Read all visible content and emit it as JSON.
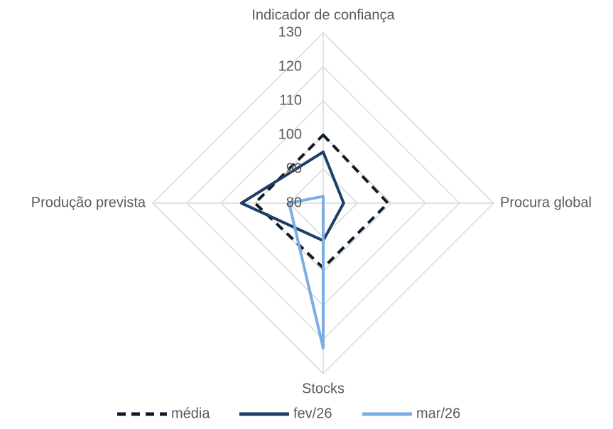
{
  "chart_data": {
    "type": "radar",
    "categories": [
      "Indicador de confiança",
      "Procura global",
      "Stocks",
      "Produção prevista"
    ],
    "ylim": [
      80,
      130
    ],
    "yticks": [
      80,
      90,
      100,
      110,
      120,
      130
    ],
    "grid": true,
    "series": [
      {
        "name": "média",
        "color": "#0d1b2a",
        "dash": true,
        "values": [
          100,
          99,
          99,
          100
        ]
      },
      {
        "name": "fev/26",
        "color": "#1f3f66",
        "dash": false,
        "values": [
          95,
          86,
          91,
          104
        ]
      },
      {
        "name": "mar/26",
        "color": "#7aaee0",
        "dash": false,
        "values": [
          82,
          80,
          122.5,
          90
        ]
      }
    ]
  }
}
